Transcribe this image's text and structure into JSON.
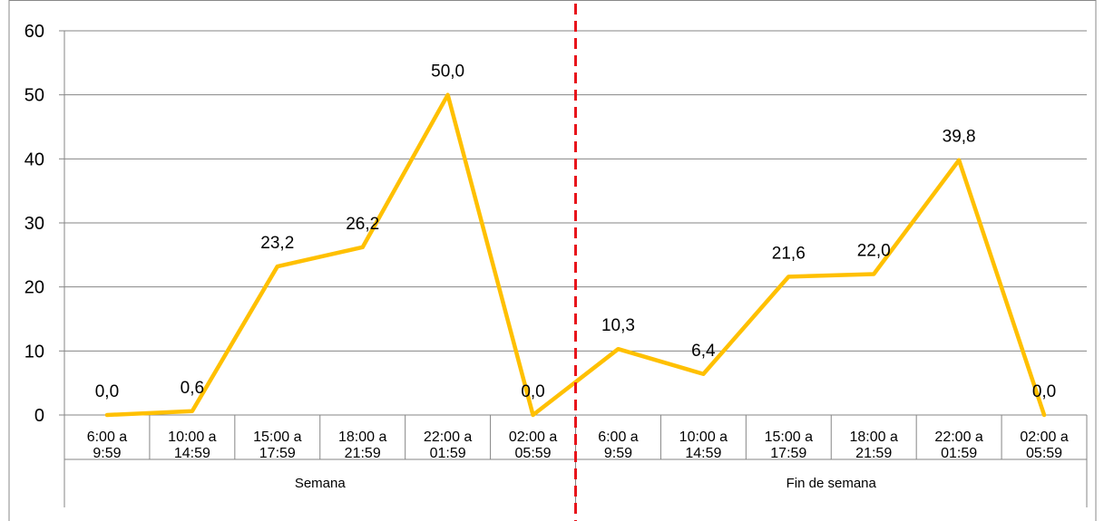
{
  "chart_data": {
    "type": "line",
    "title": "",
    "xlabel": "",
    "ylabel": "",
    "ylim": [
      0,
      60
    ],
    "yticks": [
      0,
      10,
      20,
      30,
      40,
      50,
      60
    ],
    "grid": true,
    "legend": "none",
    "line_color": "#FFC000",
    "divider_color": "#E8141B",
    "groups": [
      {
        "name": "Semana",
        "categories": [
          "6:00 a\n9:59",
          "10:00 a\n14:59",
          "15:00 a\n17:59",
          "18:00 a\n21:59",
          "22:00 a\n01:59",
          "02:00 a\n05:59"
        ]
      },
      {
        "name": "Fin de semana",
        "categories": [
          "6:00 a\n9:59",
          "10:00 a\n14:59",
          "15:00 a\n17:59",
          "18:00 a\n21:59",
          "22:00 a\n01:59",
          "02:00 a\n05:59"
        ]
      }
    ],
    "values": [
      0.0,
      0.6,
      23.2,
      26.2,
      50.0,
      0.0,
      10.3,
      6.4,
      21.6,
      22.0,
      39.8,
      0.0
    ],
    "data_labels": [
      "0,0",
      "0,6",
      "23,2",
      "26,2",
      "50,0",
      "0,0",
      "10,3",
      "6,4",
      "21,6",
      "22,0",
      "39,8",
      "0,0"
    ]
  }
}
